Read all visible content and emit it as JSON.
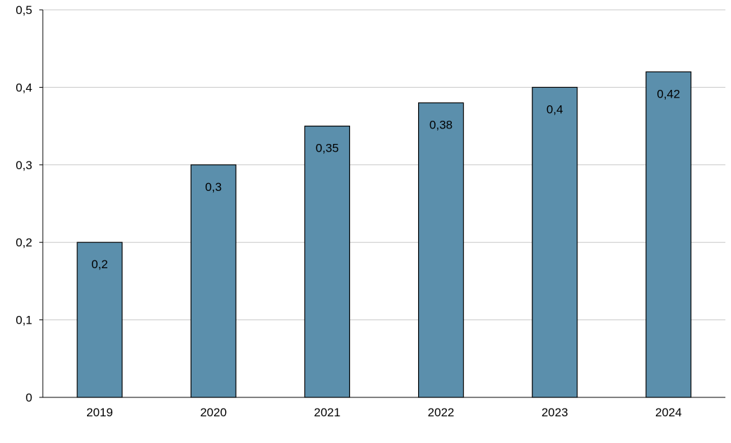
{
  "chart_data": {
    "type": "bar",
    "categories": [
      "2019",
      "2020",
      "2021",
      "2022",
      "2023",
      "2024"
    ],
    "values": [
      0.2,
      0.3,
      0.35,
      0.38,
      0.4,
      0.42
    ],
    "data_labels": [
      "0,2",
      "0,3",
      "0,35",
      "0,38",
      "0,4",
      "0,42"
    ],
    "y_ticks": [
      0,
      0.1,
      0.2,
      0.3,
      0.4,
      0.5
    ],
    "y_tick_labels": [
      "0",
      "0,1",
      "0,2",
      "0,3",
      "0,4",
      "0,5"
    ],
    "ylim": [
      0,
      0.5
    ],
    "grid": true,
    "title": "",
    "xlabel": "",
    "ylabel": "",
    "colors": {
      "bar_fill": "#5b8fac",
      "bar_stroke": "#000000",
      "grid": "#c8c8c8",
      "axis": "#000000"
    }
  }
}
